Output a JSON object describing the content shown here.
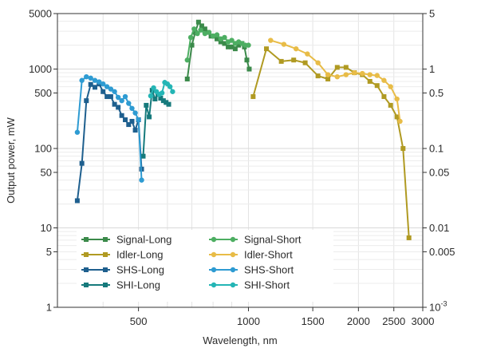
{
  "chart_data": {
    "type": "line",
    "xlabel": "Wavelength, nm",
    "ylabel": "Output power, mW",
    "y2label": "",
    "x_scale": "log",
    "y_scale": "log",
    "xlim": [
      300,
      3000
    ],
    "ylim": [
      1,
      5000
    ],
    "y2lim": [
      0.001,
      5
    ],
    "x_ticks": [
      {
        "value": 500,
        "label": "500"
      },
      {
        "value": 1000,
        "label": "1000"
      },
      {
        "value": 1500,
        "label": "1500"
      },
      {
        "value": 2000,
        "label": "2000"
      },
      {
        "value": 2500,
        "label": "2500"
      },
      {
        "value": 3000,
        "label": "3000"
      }
    ],
    "y_ticks": [
      {
        "value": 1,
        "label": "1"
      },
      {
        "value": 5,
        "label": "5"
      },
      {
        "value": 10,
        "label": "10"
      },
      {
        "value": 50,
        "label": "50"
      },
      {
        "value": 100,
        "label": "100"
      },
      {
        "value": 500,
        "label": "500"
      },
      {
        "value": 1000,
        "label": "1000"
      },
      {
        "value": 5000,
        "label": "5000"
      }
    ],
    "y2_ticks": [
      {
        "value": 0.001,
        "label": "10",
        "sup": "-3"
      },
      {
        "value": 0.005,
        "label": "0.005"
      },
      {
        "value": 0.01,
        "label": "0.01"
      },
      {
        "value": 0.05,
        "label": "0.05"
      },
      {
        "value": 0.1,
        "label": "0.1"
      },
      {
        "value": 0.5,
        "label": "0.5"
      },
      {
        "value": 1,
        "label": "1"
      },
      {
        "value": 5,
        "label": "5"
      }
    ],
    "grid": true,
    "legend_position": "bottom-left",
    "series": [
      {
        "name": "Signal-Long",
        "color": "#3b8a4a",
        "marker": "square",
        "x": [
          680,
          700,
          715,
          730,
          745,
          760,
          775,
          790,
          805,
          820,
          840,
          860,
          880,
          900,
          920,
          940,
          960,
          975,
          990,
          1005
        ],
        "y": [
          750,
          2000,
          2900,
          3900,
          3500,
          3200,
          2900,
          2600,
          2600,
          2400,
          2200,
          2100,
          1900,
          1900,
          1800,
          2000,
          2100,
          1900,
          1300,
          1000
        ]
      },
      {
        "name": "Idler-Long",
        "color": "#b09a22",
        "marker": "square",
        "x": [
          1030,
          1120,
          1230,
          1330,
          1430,
          1550,
          1650,
          1750,
          1850,
          1950,
          2050,
          2150,
          2250,
          2350,
          2450,
          2550,
          2650,
          2750
        ],
        "y": [
          450,
          1800,
          1250,
          1300,
          1200,
          820,
          750,
          1050,
          1050,
          900,
          850,
          700,
          620,
          450,
          350,
          250,
          100,
          7.5
        ]
      },
      {
        "name": "SHS-Long",
        "color": "#1e5f8e",
        "marker": "square",
        "x": [
          340,
          350,
          360,
          370,
          380,
          390,
          400,
          410,
          420,
          430,
          440,
          450,
          460,
          470,
          480,
          490,
          500,
          510
        ],
        "y": [
          22,
          65,
          400,
          640,
          590,
          650,
          520,
          450,
          450,
          360,
          330,
          260,
          230,
          200,
          220,
          170,
          230,
          55
        ]
      },
      {
        "name": "SHI-Long",
        "color": "#167a7c",
        "marker": "square",
        "x": [
          515,
          525,
          535,
          545,
          555,
          565,
          575,
          585,
          595,
          605
        ],
        "y": [
          80,
          350,
          250,
          540,
          420,
          480,
          430,
          400,
          380,
          360
        ]
      },
      {
        "name": "Signal-Short",
        "color": "#4dae62",
        "marker": "circle",
        "x": [
          680,
          695,
          710,
          725,
          740,
          760,
          780,
          800,
          820,
          840,
          860,
          880,
          900,
          920,
          940,
          960,
          980,
          1000
        ],
        "y": [
          1300,
          2500,
          3200,
          2800,
          3100,
          2800,
          2900,
          2600,
          2700,
          2400,
          2500,
          2200,
          2300,
          2100,
          2200,
          2100,
          2000,
          2000
        ]
      },
      {
        "name": "Idler-Short",
        "color": "#e8bc47",
        "marker": "circle",
        "x": [
          1150,
          1250,
          1350,
          1450,
          1550,
          1650,
          1750,
          1850,
          1950,
          2050,
          2150,
          2250,
          2350,
          2450,
          2550,
          2600
        ],
        "y": [
          2300,
          2050,
          1800,
          1550,
          1200,
          850,
          800,
          850,
          900,
          880,
          850,
          830,
          720,
          600,
          420,
          220
        ]
      },
      {
        "name": "SHS-Short",
        "color": "#2e9bd2",
        "marker": "circle",
        "x": [
          340,
          350,
          360,
          370,
          380,
          390,
          400,
          410,
          420,
          430,
          440,
          450,
          460,
          470,
          480,
          490,
          500,
          510
        ],
        "y": [
          160,
          720,
          800,
          770,
          720,
          690,
          650,
          600,
          560,
          520,
          440,
          400,
          450,
          370,
          320,
          280,
          230,
          40
        ]
      },
      {
        "name": "SHI-Short",
        "color": "#24b5b5",
        "marker": "circle",
        "x": [
          540,
          550,
          560,
          570,
          580,
          590,
          600,
          610,
          620
        ],
        "y": [
          460,
          580,
          520,
          480,
          500,
          680,
          650,
          600,
          520
        ]
      }
    ]
  }
}
